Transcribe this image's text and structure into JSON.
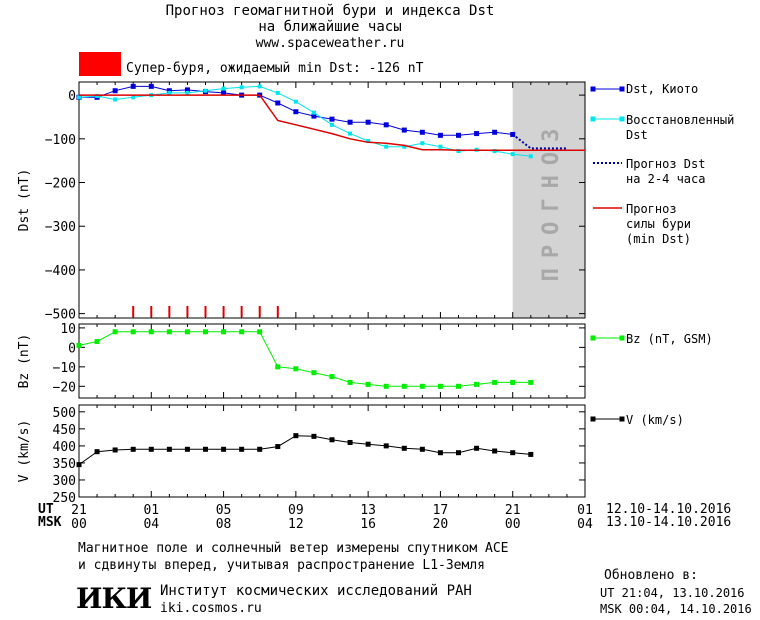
{
  "header": {
    "title_line1": "Прогноз геомагнитной бури и индекса Dst",
    "title_line2": "на ближайшие часы",
    "url": "www.spaceweather.ru"
  },
  "alert": {
    "color": "#ff0000",
    "text": "Супер-буря, ожидаемый min Dst: -126 nT"
  },
  "forecast_band_text": "ПРОГНОЗ",
  "legend": {
    "dst_kyoto": "Dst, Киото",
    "dst_restored_1": "Восстановленный",
    "dst_restored_2": "Dst",
    "dst_forecast_1": "Прогноз Dst",
    "dst_forecast_2": "на 2-4 часа",
    "storm_1": "Прогноз",
    "storm_2": "силы бури",
    "storm_3": "(min Dst)",
    "bz": "Bz (nT, GSM)",
    "v": "V (km/s)"
  },
  "axes": {
    "ut_label": "UT",
    "msk_label": "MSK",
    "ut_ticks": [
      "21",
      "01",
      "05",
      "09",
      "13",
      "17",
      "21",
      "01"
    ],
    "msk_ticks": [
      "00",
      "04",
      "08",
      "12",
      "16",
      "20",
      "00",
      "04"
    ],
    "ut_range": "12.10-14.10.2016",
    "msk_range": "13.10-14.10.2016"
  },
  "footer": {
    "note_1": "Магнитное поле и солнечный ветер измерены спутником ACE",
    "note_2": "и сдвинуты вперед, учитывая распространение L1-Земля",
    "updated_label": "Обновлено в:",
    "updated_ut": "UT  21:04, 13.10.2016",
    "updated_msk": "MSK 00:04, 14.10.2016",
    "logo_text": "ИКИ",
    "institute": "Институт космических исследований РАН",
    "institute_url": "iki.cosmos.ru"
  },
  "colors": {
    "dst_kyoto": "#0000dd",
    "dst_restored": "#00e5ee",
    "dst_forecast": "#0000aa",
    "storm": "#dd0000",
    "bz": "#00ee00",
    "v": "#000000",
    "forecast_band": "#d3d3d3"
  },
  "chart_data": [
    {
      "type": "line",
      "panel": "dst",
      "ylabel": "Dst (nT)",
      "ylim": [
        -510,
        30
      ],
      "yticks": [
        0,
        -100,
        -200,
        -300,
        -400,
        -500
      ],
      "xlim": [
        0,
        28
      ],
      "forecast_band_x": [
        24,
        28
      ],
      "series": [
        {
          "name": "Dst, Киото",
          "x": [
            0,
            1,
            2,
            3,
            4,
            5,
            6,
            7,
            8,
            9,
            10,
            11,
            12,
            13,
            14,
            15,
            16,
            17,
            18,
            19,
            20,
            21,
            22,
            23,
            24
          ],
          "values": [
            -5,
            -5,
            10,
            20,
            20,
            10,
            12,
            8,
            5,
            0,
            0,
            -18,
            -38,
            -48,
            -55,
            -62,
            -62,
            -68,
            -80,
            -85,
            -92,
            -92,
            -88,
            -85,
            -90
          ]
        },
        {
          "name": "Восстановленный Dst",
          "x": [
            0,
            1,
            2,
            3,
            4,
            5,
            6,
            7,
            8,
            9,
            10,
            11,
            12,
            13,
            14,
            15,
            16,
            17,
            18,
            19,
            20,
            21,
            22,
            23,
            24,
            25
          ],
          "values": [
            -5,
            -2,
            -10,
            -5,
            0,
            5,
            5,
            10,
            15,
            18,
            20,
            5,
            -15,
            -40,
            -68,
            -88,
            -105,
            -118,
            -118,
            -110,
            -118,
            -128,
            -125,
            -128,
            -135,
            -140
          ]
        },
        {
          "name": "Прогноз Dst на 2-4 часа",
          "x": [
            24,
            25,
            26,
            27
          ],
          "values": [
            -90,
            -122,
            -122,
            -122
          ]
        },
        {
          "name": "Прогноз силы бури (min Dst)",
          "x": [
            0,
            10,
            11,
            12,
            13,
            14,
            15,
            16,
            17,
            18,
            19,
            20,
            21,
            22,
            23,
            24,
            25,
            26,
            27,
            28
          ],
          "values": [
            0,
            0,
            -58,
            -68,
            -78,
            -88,
            -100,
            -108,
            -110,
            -115,
            -125,
            -125,
            -126,
            -126,
            -126,
            -126,
            -126,
            -126,
            -126,
            -126
          ]
        }
      ],
      "storm_ticks_x": [
        3,
        4,
        5,
        6,
        7,
        8,
        9,
        10,
        11
      ]
    },
    {
      "type": "line",
      "panel": "bz",
      "ylabel": "Bz (nT)",
      "ylim": [
        -26,
        12
      ],
      "yticks": [
        10,
        0,
        -10,
        -20
      ],
      "xlim": [
        0,
        28
      ],
      "series": [
        {
          "name": "Bz (nT, GSM)",
          "x": [
            0,
            1,
            2,
            3,
            4,
            5,
            6,
            7,
            8,
            9,
            10,
            11,
            12,
            13,
            14,
            15,
            16,
            17,
            18,
            19,
            20,
            21,
            22,
            23,
            24,
            25
          ],
          "values": [
            1,
            3,
            8,
            8,
            8,
            8,
            8,
            8,
            8,
            8,
            8,
            -10,
            -11,
            -13,
            -15,
            -18,
            -19,
            -20,
            -20,
            -20,
            -20,
            -20,
            -19,
            -18,
            -18,
            -18
          ]
        }
      ]
    },
    {
      "type": "line",
      "panel": "v",
      "ylabel": "V (km/s)",
      "ylim": [
        250,
        520
      ],
      "yticks": [
        500,
        450,
        400,
        350,
        300,
        250
      ],
      "xlim": [
        0,
        28
      ],
      "series": [
        {
          "name": "V (km/s)",
          "x": [
            0,
            1,
            2,
            3,
            4,
            5,
            6,
            7,
            8,
            9,
            10,
            11,
            12,
            13,
            14,
            15,
            16,
            17,
            18,
            19,
            20,
            21,
            22,
            23,
            24,
            25
          ],
          "values": [
            345,
            383,
            388,
            390,
            390,
            390,
            390,
            390,
            390,
            390,
            390,
            398,
            430,
            428,
            418,
            410,
            405,
            400,
            393,
            390,
            380,
            380,
            393,
            385,
            380,
            375
          ]
        }
      ]
    }
  ]
}
